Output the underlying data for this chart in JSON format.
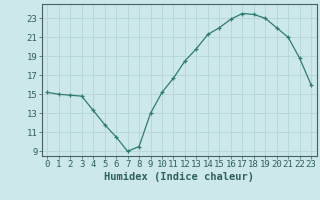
{
  "x": [
    0,
    1,
    2,
    3,
    4,
    5,
    6,
    7,
    8,
    9,
    10,
    11,
    12,
    13,
    14,
    15,
    16,
    17,
    18,
    19,
    20,
    21,
    22,
    23
  ],
  "y": [
    15.2,
    15.0,
    14.9,
    14.8,
    13.3,
    11.8,
    10.5,
    9.0,
    9.5,
    13.0,
    15.2,
    16.7,
    18.5,
    19.8,
    21.3,
    22.0,
    22.9,
    23.5,
    23.4,
    23.0,
    22.0,
    21.0,
    18.8,
    16.0
  ],
  "xlabel": "Humidex (Indice chaleur)",
  "xlim": [
    -0.5,
    23.5
  ],
  "ylim": [
    8.5,
    24.5
  ],
  "yticks": [
    9,
    11,
    13,
    15,
    17,
    19,
    21,
    23
  ],
  "xticks": [
    0,
    1,
    2,
    3,
    4,
    5,
    6,
    7,
    8,
    9,
    10,
    11,
    12,
    13,
    14,
    15,
    16,
    17,
    18,
    19,
    20,
    21,
    22,
    23
  ],
  "line_color": "#2e7d6e",
  "marker": "+",
  "bg_color": "#cce8e8",
  "grid_color": "#b8d8d8",
  "tick_label_color": "#2e6060",
  "label_color": "#2e6060",
  "font_size": 6.5,
  "xlabel_fontsize": 7.5
}
